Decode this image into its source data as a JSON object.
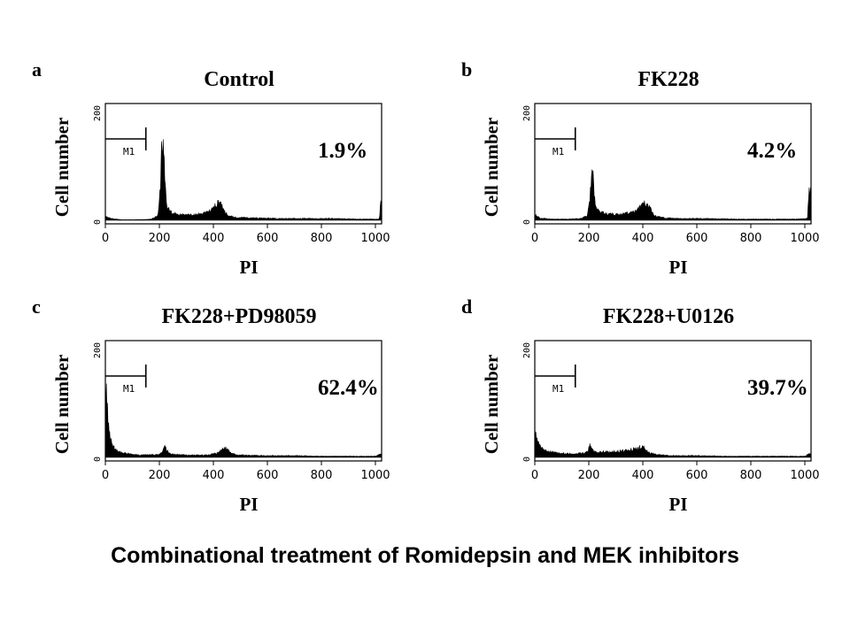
{
  "caption": "Combinational treatment of Romidepsin and MEK inhibitors",
  "chart_data": [
    {
      "type": "area",
      "letter": "a",
      "title": "Control",
      "xlabel": "PI",
      "ylabel": "Cell number",
      "y_axis_labels": [
        "200",
        "0"
      ],
      "xlim": [
        0,
        1023
      ],
      "xticks": [
        0,
        200,
        400,
        600,
        800,
        1000
      ],
      "gate_label": "M1",
      "gate_range": [
        0,
        150
      ],
      "annotation": "1.9%",
      "series": [
        {
          "x": [
            0,
            20,
            60,
            120,
            170,
            195,
            205,
            210,
            215,
            220,
            228,
            240,
            270,
            320,
            370,
            395,
            410,
            420,
            430,
            440,
            455,
            480,
            550,
            650,
            750,
            850,
            950,
            1010,
            1015,
            1020,
            1023
          ],
          "y": [
            7,
            3,
            1,
            1,
            2,
            8,
            60,
            150,
            135,
            60,
            25,
            14,
            10,
            9,
            12,
            18,
            26,
            30,
            26,
            15,
            8,
            5,
            4,
            3,
            3,
            3,
            2,
            2,
            3,
            42,
            42
          ]
        }
      ]
    },
    {
      "type": "area",
      "letter": "b",
      "title": "FK228",
      "xlabel": "PI",
      "ylabel": "Cell number",
      "y_axis_labels": [
        "200",
        "0"
      ],
      "xlim": [
        0,
        1023
      ],
      "xticks": [
        0,
        200,
        400,
        600,
        800,
        1000
      ],
      "gate_label": "M1",
      "gate_range": [
        0,
        150
      ],
      "annotation": "4.2%",
      "series": [
        {
          "x": [
            0,
            20,
            60,
            120,
            170,
            195,
            205,
            210,
            215,
            220,
            228,
            240,
            270,
            320,
            370,
            395,
            410,
            420,
            430,
            440,
            455,
            480,
            550,
            650,
            750,
            850,
            950,
            1010,
            1015,
            1020,
            1023
          ],
          "y": [
            10,
            4,
            2,
            2,
            3,
            8,
            40,
            85,
            78,
            45,
            22,
            14,
            11,
            10,
            14,
            24,
            30,
            27,
            18,
            8,
            6,
            4,
            3,
            3,
            2,
            2,
            2,
            3,
            48,
            48,
            48
          ]
        }
      ]
    },
    {
      "type": "area",
      "letter": "c",
      "title": "FK228+PD98059",
      "xlabel": "PI",
      "ylabel": "Cell number",
      "y_axis_labels": [
        "200",
        "0"
      ],
      "xlim": [
        0,
        1023
      ],
      "xticks": [
        0,
        200,
        400,
        600,
        800,
        1000
      ],
      "gate_label": "M1",
      "gate_range": [
        0,
        150
      ],
      "annotation": "62.4%",
      "series": [
        {
          "x": [
            0,
            2,
            6,
            10,
            15,
            25,
            40,
            60,
            100,
            150,
            200,
            212,
            220,
            228,
            240,
            260,
            300,
            380,
            420,
            435,
            445,
            455,
            470,
            500,
            600,
            700,
            800,
            900,
            1000,
            1015,
            1020,
            1023
          ],
          "y": [
            120,
            115,
            95,
            60,
            40,
            20,
            12,
            8,
            5,
            4,
            5,
            10,
            20,
            12,
            6,
            5,
            4,
            4,
            8,
            14,
            16,
            12,
            6,
            4,
            3,
            3,
            2,
            2,
            2,
            5,
            5,
            5
          ]
        }
      ]
    },
    {
      "type": "area",
      "letter": "d",
      "title": "FK228+U0126",
      "xlabel": "PI",
      "ylabel": "Cell number",
      "y_axis_labels": [
        "200",
        "0"
      ],
      "xlim": [
        0,
        1023
      ],
      "xticks": [
        0,
        200,
        400,
        600,
        800,
        1000
      ],
      "gate_label": "M1",
      "gate_range": [
        0,
        150
      ],
      "annotation": "39.7%",
      "series": [
        {
          "x": [
            0,
            5,
            10,
            20,
            35,
            60,
            100,
            150,
            190,
            200,
            205,
            212,
            220,
            240,
            300,
            350,
            380,
            395,
            405,
            420,
            450,
            500,
            600,
            700,
            800,
            900,
            1000,
            1015,
            1020,
            1023
          ],
          "y": [
            50,
            38,
            28,
            18,
            12,
            9,
            7,
            6,
            8,
            15,
            22,
            14,
            10,
            9,
            10,
            12,
            16,
            18,
            16,
            8,
            5,
            3,
            3,
            2,
            2,
            2,
            2,
            6,
            6,
            6
          ]
        }
      ]
    }
  ]
}
